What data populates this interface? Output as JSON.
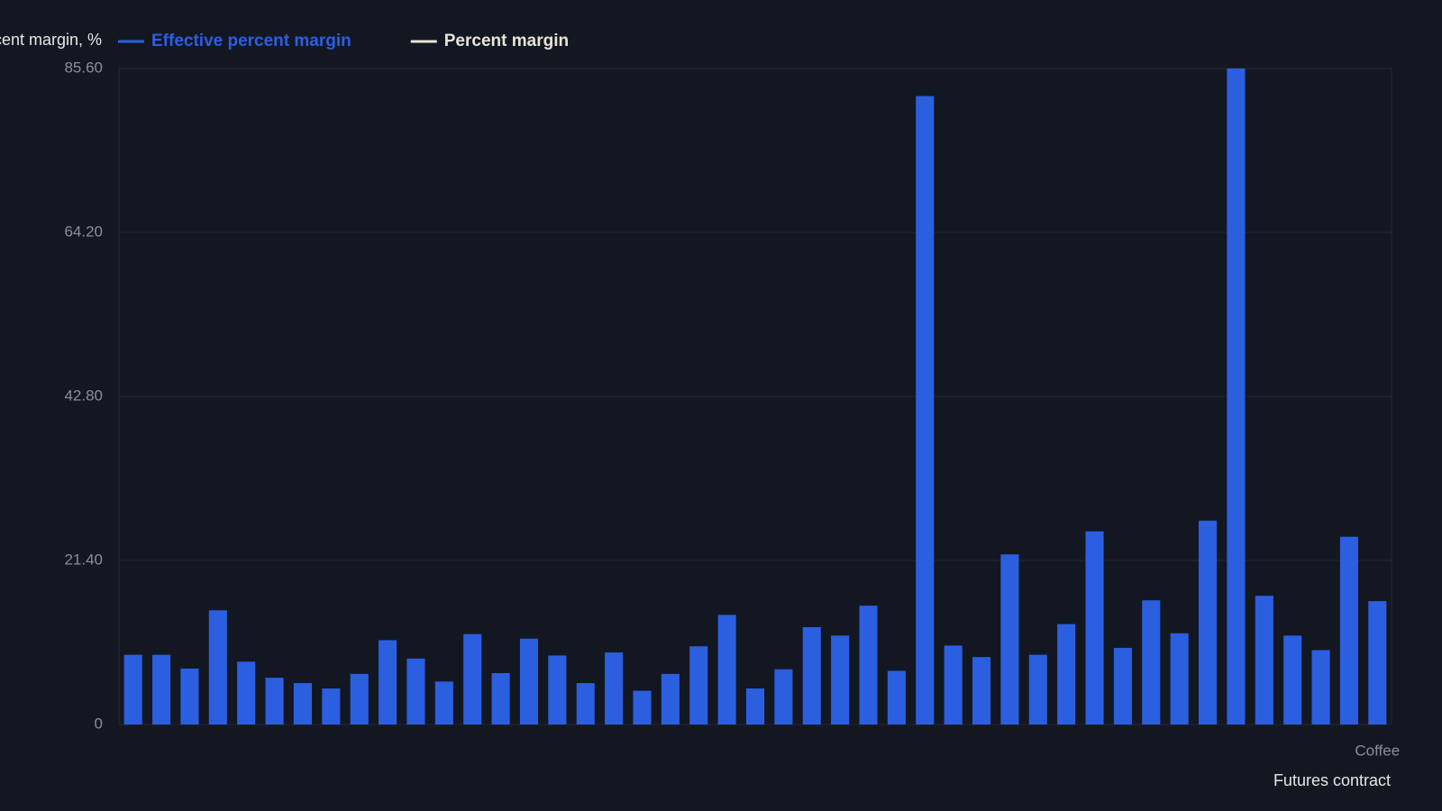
{
  "chart_data": {
    "type": "bar",
    "y_label": "Percent margin, %",
    "x_label": "Futures contract",
    "categories": [
      null,
      null,
      null,
      null,
      null,
      null,
      null,
      null,
      null,
      null,
      null,
      null,
      null,
      null,
      null,
      null,
      null,
      null,
      null,
      null,
      null,
      null,
      null,
      null,
      null,
      null,
      null,
      null,
      null,
      null,
      null,
      null,
      null,
      null,
      null,
      null,
      null,
      null,
      null,
      null,
      null,
      null,
      null,
      null,
      "Coffee"
    ],
    "series": [
      {
        "name": "Effective percent margin",
        "color": "#2b5fe0",
        "values": [
          9.1,
          9.1,
          7.3,
          14.9,
          8.2,
          6.1,
          5.4,
          4.7,
          6.6,
          11.0,
          8.6,
          5.6,
          11.8,
          6.7,
          11.2,
          9.0,
          5.4,
          9.4,
          4.4,
          6.6,
          10.2,
          14.3,
          4.7,
          7.2,
          12.7,
          11.6,
          15.5,
          7.0,
          82.0,
          10.3,
          8.8,
          22.2,
          9.1,
          13.1,
          25.2,
          10.0,
          16.2,
          11.9,
          26.6,
          85.6,
          16.8,
          11.6,
          9.7,
          24.5,
          16.1
        ]
      },
      {
        "name": "Percent margin",
        "color": "#e8e4d8",
        "values": [
          null,
          null,
          null,
          null,
          null,
          null,
          null,
          null,
          null,
          null,
          null,
          null,
          null,
          null,
          null,
          null,
          null,
          null,
          null,
          null,
          null,
          null,
          null,
          null,
          null,
          null,
          null,
          null,
          null,
          null,
          null,
          null,
          null,
          null,
          null,
          null,
          null,
          null,
          null,
          null,
          null,
          null,
          null,
          null,
          null
        ]
      }
    ],
    "ylim": [
      0,
      85.6
    ],
    "yticks": [
      0,
      {
        "value": 21.4,
        "label": "21.40"
      },
      {
        "value": 42.8,
        "label": "42.80"
      },
      {
        "value": 64.2,
        "label": "64.20"
      },
      {
        "value": 85.6,
        "label": "85.60"
      }
    ],
    "grid": true
  }
}
